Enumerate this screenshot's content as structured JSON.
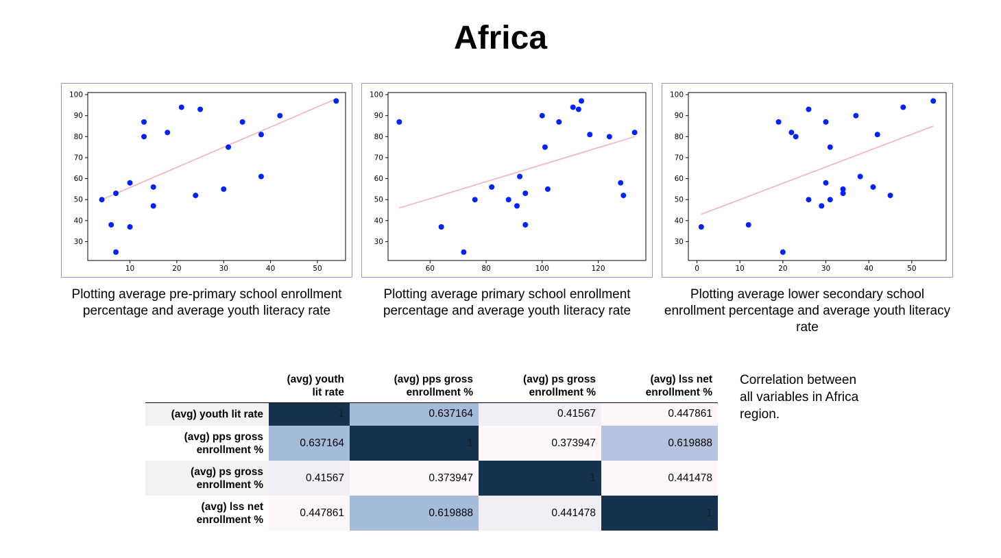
{
  "page": {
    "title": "Africa",
    "note": "Correlation between all variables in Africa region."
  },
  "chart_data": [
    {
      "type": "scatter",
      "caption": "Plotting average pre-primary school enrollment percentage and average youth literacy rate",
      "xticks": [
        10,
        20,
        30,
        40,
        50
      ],
      "yticks": [
        30,
        40,
        50,
        60,
        70,
        80,
        90,
        100
      ],
      "xlim": [
        1,
        56
      ],
      "ylim": [
        21,
        101
      ],
      "points": [
        [
          4,
          50
        ],
        [
          6,
          38
        ],
        [
          7,
          53
        ],
        [
          7,
          25
        ],
        [
          10,
          58
        ],
        [
          10,
          37
        ],
        [
          13,
          87
        ],
        [
          13,
          80
        ],
        [
          15,
          56
        ],
        [
          15,
          47
        ],
        [
          18,
          82
        ],
        [
          21,
          94
        ],
        [
          24,
          52
        ],
        [
          25,
          93
        ],
        [
          30,
          55
        ],
        [
          31,
          75
        ],
        [
          34,
          87
        ],
        [
          38,
          81
        ],
        [
          38,
          61
        ],
        [
          42,
          90
        ],
        [
          54,
          97
        ]
      ],
      "trend": [
        [
          4,
          50
        ],
        [
          54,
          98
        ]
      ],
      "point_color": "#0022ff",
      "trend_color": "#f4b8c0"
    },
    {
      "type": "scatter",
      "caption": "Plotting average primary school enrollment percentage and average youth literacy rate",
      "xticks": [
        60,
        80,
        100,
        120
      ],
      "yticks": [
        30,
        40,
        50,
        60,
        70,
        80,
        90,
        100
      ],
      "xlim": [
        45,
        137
      ],
      "ylim": [
        21,
        101
      ],
      "points": [
        [
          49,
          87
        ],
        [
          64,
          37
        ],
        [
          72,
          25
        ],
        [
          76,
          50
        ],
        [
          82,
          56
        ],
        [
          88,
          50
        ],
        [
          91,
          47
        ],
        [
          92,
          61
        ],
        [
          94,
          53
        ],
        [
          94,
          38
        ],
        [
          100,
          90
        ],
        [
          101,
          75
        ],
        [
          102,
          55
        ],
        [
          106,
          87
        ],
        [
          111,
          94
        ],
        [
          113,
          93
        ],
        [
          114,
          97
        ],
        [
          117,
          81
        ],
        [
          124,
          80
        ],
        [
          128,
          58
        ],
        [
          129,
          52
        ],
        [
          133,
          82
        ]
      ],
      "trend": [
        [
          49,
          46
        ],
        [
          133,
          80
        ]
      ],
      "point_color": "#0022ff",
      "trend_color": "#f4b8c0"
    },
    {
      "type": "scatter",
      "caption": "Plotting average lower secondary school enrollment percentage and average youth literacy rate",
      "xticks": [
        0,
        10,
        20,
        30,
        40,
        50
      ],
      "yticks": [
        30,
        40,
        50,
        60,
        70,
        80,
        90,
        100
      ],
      "xlim": [
        -2,
        58
      ],
      "ylim": [
        21,
        101
      ],
      "points": [
        [
          1,
          37
        ],
        [
          12,
          38
        ],
        [
          19,
          87
        ],
        [
          20,
          25
        ],
        [
          22,
          82
        ],
        [
          23,
          80
        ],
        [
          26,
          93
        ],
        [
          26,
          50
        ],
        [
          29,
          47
        ],
        [
          30,
          87
        ],
        [
          30,
          58
        ],
        [
          31,
          75
        ],
        [
          31,
          50
        ],
        [
          34,
          55
        ],
        [
          34,
          53
        ],
        [
          37,
          90
        ],
        [
          38,
          61
        ],
        [
          41,
          56
        ],
        [
          42,
          81
        ],
        [
          45,
          52
        ],
        [
          48,
          94
        ],
        [
          55,
          97
        ]
      ],
      "trend": [
        [
          1,
          43
        ],
        [
          55,
          85
        ]
      ],
      "point_color": "#0022ff",
      "trend_color": "#f4b8c0"
    }
  ],
  "table": {
    "columns": [
      "(avg) youth\nlit rate",
      "(avg) pps gross\nenrollment %",
      "(avg) ps gross\nenrollment %",
      "(avg) lss net\nenrollment %"
    ],
    "rows": [
      {
        "label": "(avg) youth lit rate",
        "values": [
          "1",
          "0.637164",
          "0.41567",
          "0.447861"
        ]
      },
      {
        "label": "(avg) pps gross\nenrollment %",
        "values": [
          "0.637164",
          "1",
          "0.373947",
          "0.619888"
        ]
      },
      {
        "label": "(avg) ps gross\nenrollment %",
        "values": [
          "0.41567",
          "0.373947",
          "1",
          "0.441478"
        ]
      },
      {
        "label": "(avg) lss net\nenrollment %",
        "values": [
          "0.447861",
          "0.619888",
          "0.441478",
          "1"
        ]
      }
    ],
    "cell_colors": [
      [
        "#16324f",
        "#a4bcd9",
        "#f1eef6",
        "#fdf7fb"
      ],
      [
        "#a4bcd9",
        "#16324f",
        "#fdf7fb",
        "#b7c3de"
      ],
      [
        "#f1eef6",
        "#fdf7fb",
        "#16324f",
        "#fdf7fb"
      ],
      [
        "#fdf7fb",
        "#a4bcd9",
        "#f1eef6",
        "#16324f"
      ]
    ],
    "row_header_colors": [
      "#f2f2f2",
      "#ffffff",
      "#f2f2f2",
      "#ffffff"
    ]
  }
}
